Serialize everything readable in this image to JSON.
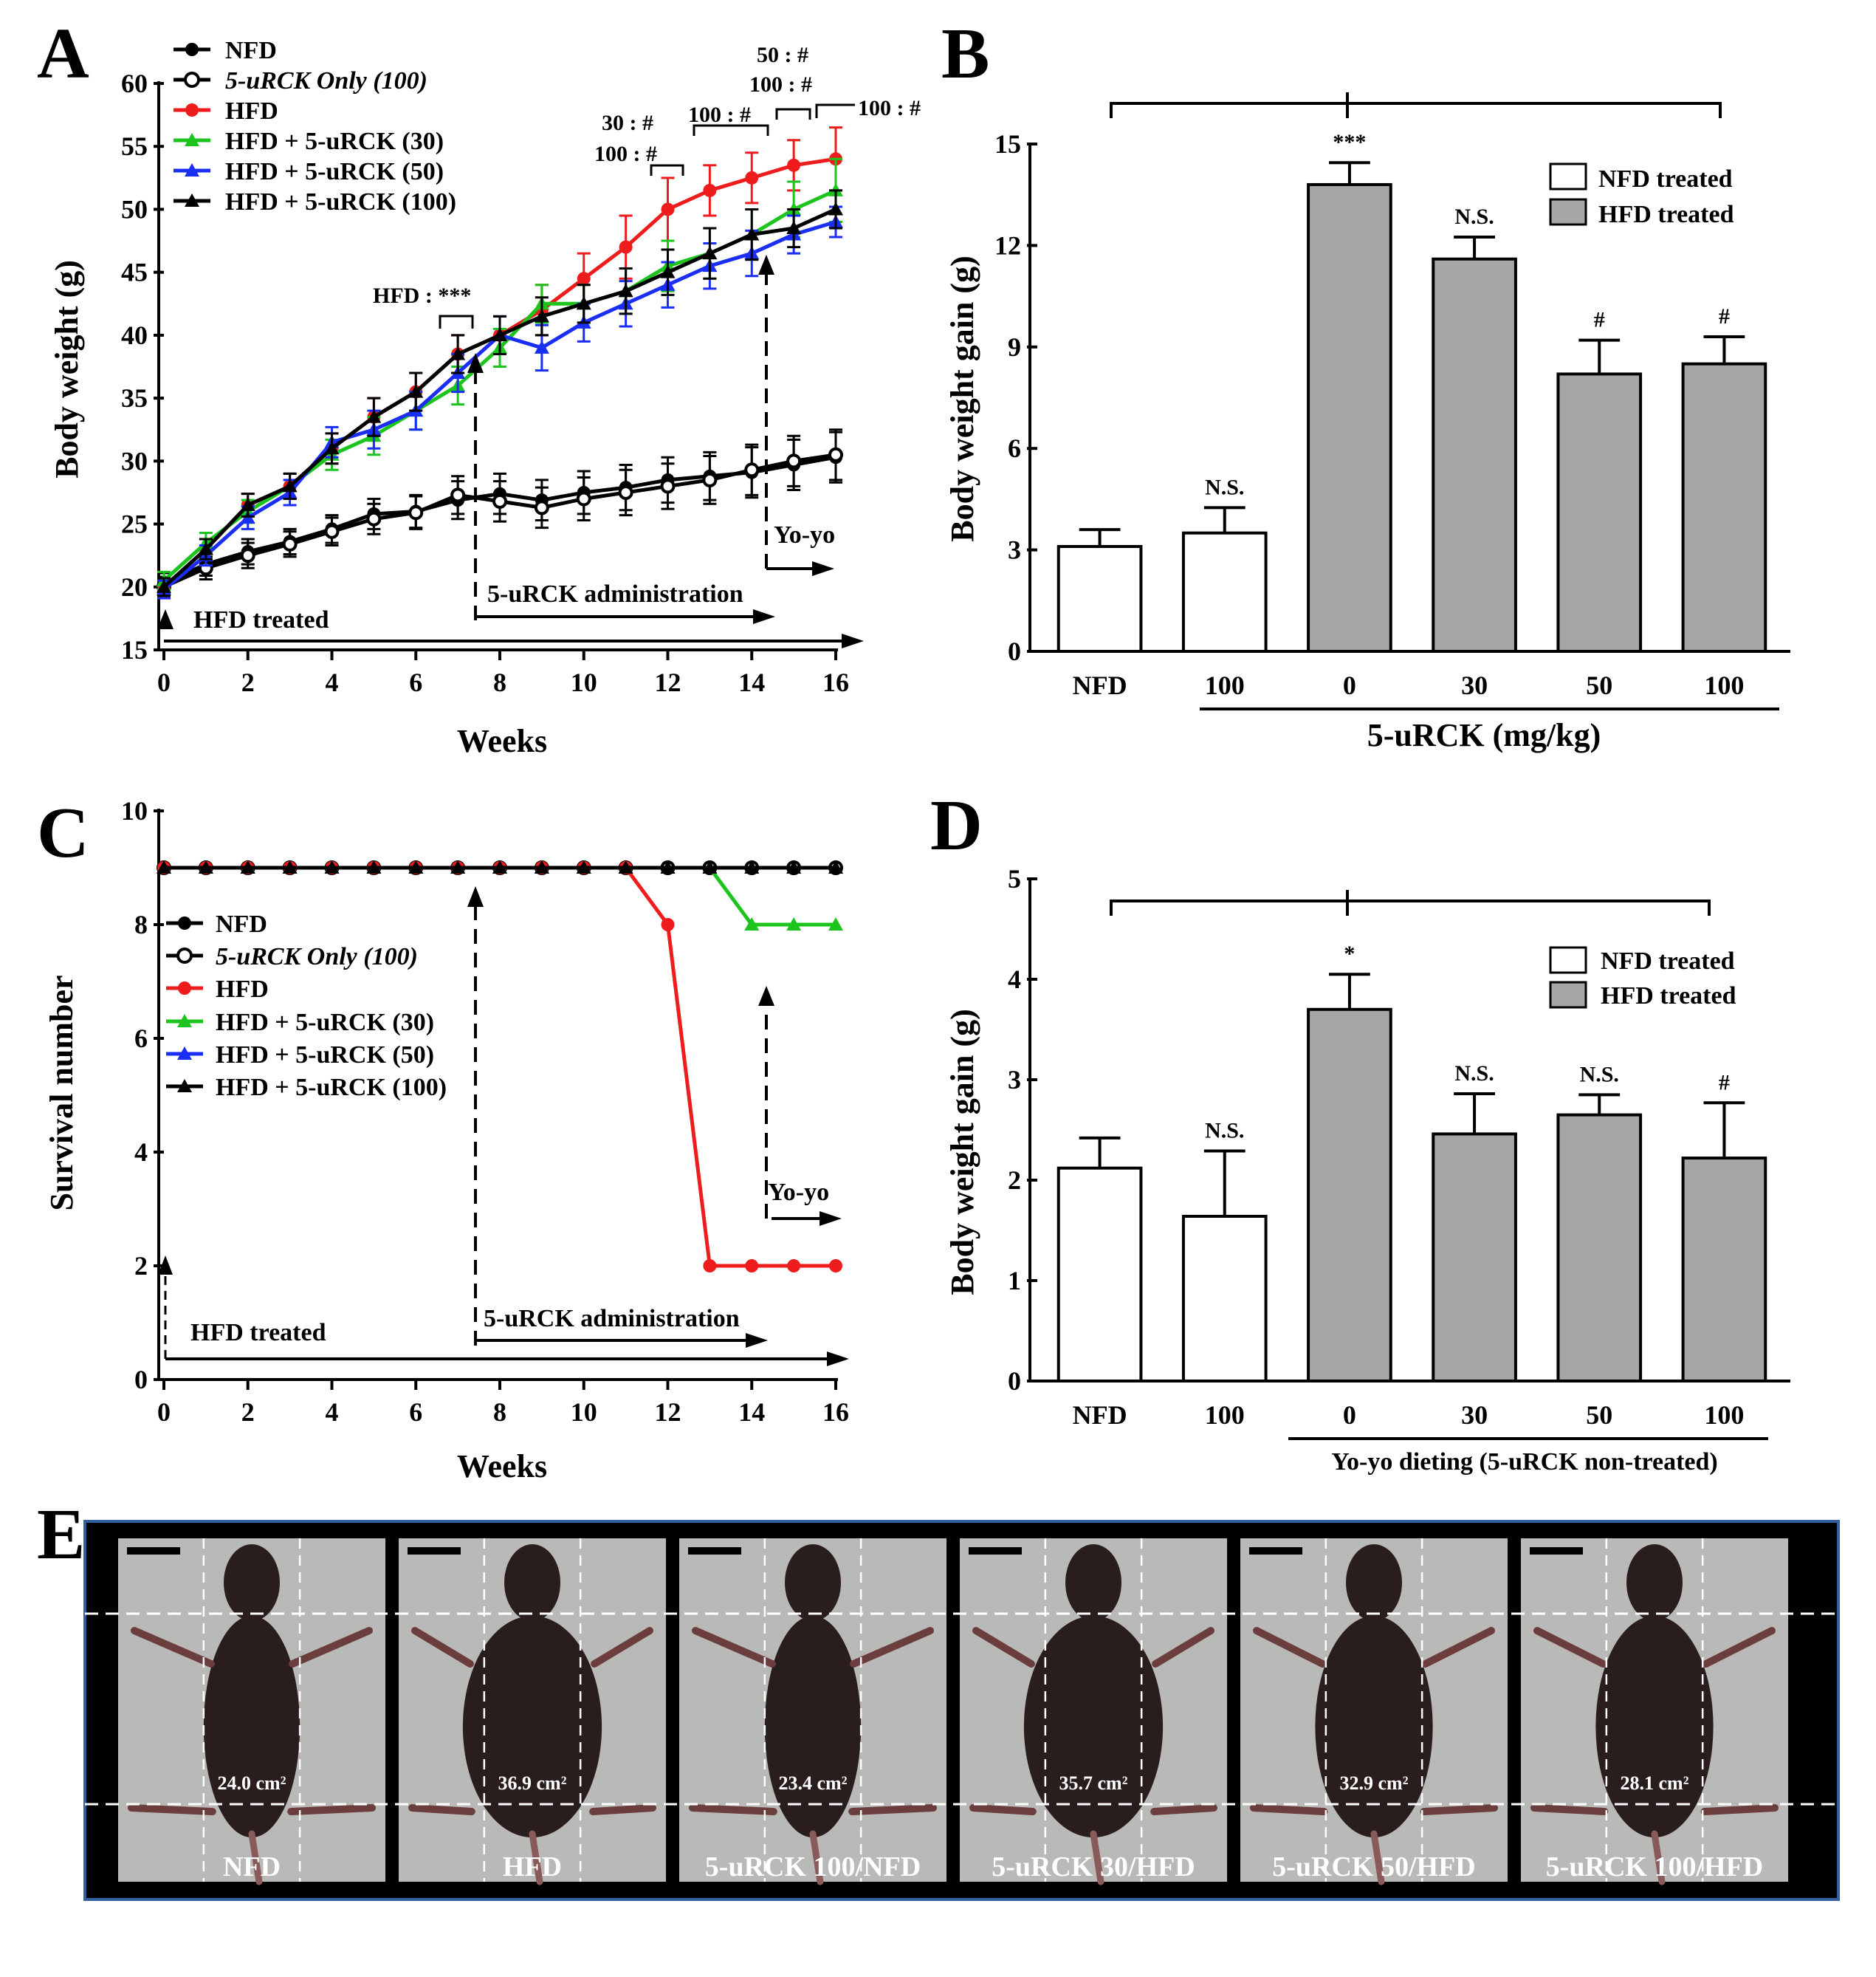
{
  "panels": {
    "A": {
      "letter": "A"
    },
    "B": {
      "letter": "B"
    },
    "C": {
      "letter": "C"
    },
    "D": {
      "letter": "D"
    },
    "E": {
      "letter": "E"
    }
  },
  "colors": {
    "NFD": "#000000",
    "uRCK_only": "#000000",
    "HFD": "#ee1c1c",
    "HFD30": "#1ec41e",
    "HFD50": "#1a2ef5",
    "HFD100": "#000000",
    "bar_gray": "#a6a6a6",
    "photo_frame": "#2f5f9e"
  },
  "legend_A": [
    {
      "label": "NFD",
      "key": "NFD",
      "marker": "circle-filled"
    },
    {
      "label": "5-uRCK Only (100)",
      "key": "uRCK_only",
      "marker": "circle-open"
    },
    {
      "label": "HFD",
      "key": "HFD",
      "marker": "circle-filled"
    },
    {
      "label": "HFD + 5-uRCK (30)",
      "key": "HFD30",
      "marker": "triangle"
    },
    {
      "label": "HFD + 5-uRCK (50)",
      "key": "HFD50",
      "marker": "triangle"
    },
    {
      "label": "HFD + 5-uRCK (100)",
      "key": "HFD100",
      "marker": "triangle"
    }
  ],
  "annotations_A": {
    "hfd_sig": "HFD : ***",
    "w12a": "30 : #",
    "w12b": "100 : #",
    "w13": "100 : #",
    "w15a": "50 : #",
    "w15b": "100 : #",
    "w16": "100 : #",
    "yoyo": "Yo-yo",
    "admin": "5-uRCK administration",
    "hfd_treated": "HFD treated"
  },
  "annotations_C": {
    "yoyo": "Yo-yo",
    "admin": "5-uRCK administration",
    "hfd_treated": "HFD treated"
  },
  "legend_bar": {
    "nfd": "NFD treated",
    "hfd": "HFD treated"
  },
  "group_label_B": "5-uRCK (mg/kg)",
  "group_label_D": "Yo-yo dieting (5-uRCK non-treated)",
  "chart_data": [
    {
      "panel": "A",
      "type": "line",
      "xlabel": "Weeks",
      "ylabel": "Body weight (g)",
      "xlim": [
        0,
        16
      ],
      "ylim": [
        15,
        60
      ],
      "xticks": [
        0,
        2,
        4,
        6,
        8,
        10,
        12,
        14,
        16
      ],
      "yticks": [
        15,
        20,
        25,
        30,
        35,
        40,
        45,
        50,
        55,
        60
      ],
      "x": [
        0,
        1,
        2,
        3,
        4,
        5,
        6,
        7,
        8,
        9,
        10,
        11,
        12,
        13,
        14,
        15,
        16
      ],
      "series": [
        {
          "name": "NFD",
          "key": "NFD",
          "marker": "circle-filled",
          "values": [
            20.3,
            21.8,
            22.8,
            23.6,
            24.6,
            25.8,
            26.0,
            26.9,
            27.4,
            26.9,
            27.5,
            27.9,
            28.5,
            28.8,
            29.1,
            29.7,
            30.3
          ],
          "err": [
            0.8,
            0.9,
            1.0,
            1.0,
            1.1,
            1.2,
            1.3,
            1.5,
            1.6,
            1.6,
            1.7,
            1.8,
            1.8,
            1.9,
            2.0,
            2.0,
            2.0
          ]
        },
        {
          "name": "5-uRCK Only (100)",
          "key": "uRCK_only",
          "marker": "circle-open",
          "values": [
            20.0,
            21.5,
            22.5,
            23.4,
            24.4,
            25.4,
            25.9,
            27.3,
            26.8,
            26.3,
            27.0,
            27.5,
            28.0,
            28.5,
            29.3,
            30.0,
            30.5
          ],
          "err": [
            0.8,
            0.9,
            1.0,
            1.0,
            1.1,
            1.2,
            1.3,
            1.5,
            1.6,
            1.6,
            1.7,
            1.8,
            1.8,
            1.9,
            2.0,
            2.0,
            2.0
          ]
        },
        {
          "name": "HFD",
          "key": "HFD",
          "marker": "circle-filled",
          "values": [
            20.0,
            23.0,
            26.5,
            28.0,
            31.0,
            33.5,
            35.5,
            38.5,
            40.0,
            42.0,
            44.5,
            47.0,
            50.0,
            51.5,
            52.5,
            53.5,
            54.0
          ],
          "err": [
            0.7,
            0.8,
            0.9,
            1.0,
            1.2,
            1.5,
            1.5,
            1.5,
            1.5,
            2.0,
            2.0,
            2.5,
            2.5,
            2.0,
            2.0,
            2.0,
            2.5
          ]
        },
        {
          "name": "HFD + 5-uRCK (30)",
          "key": "HFD30",
          "marker": "triangle",
          "values": [
            20.5,
            23.5,
            26.0,
            28.0,
            30.5,
            32.0,
            34.0,
            36.0,
            39.0,
            42.5,
            42.5,
            43.5,
            45.5,
            46.5,
            48.0,
            50.0,
            51.5
          ],
          "err": [
            0.7,
            0.8,
            0.9,
            1.0,
            1.2,
            1.5,
            1.5,
            1.5,
            1.5,
            1.5,
            1.5,
            1.8,
            2.0,
            2.0,
            2.0,
            2.2,
            2.5
          ]
        },
        {
          "name": "HFD + 5-uRCK (50)",
          "key": "HFD50",
          "marker": "triangle",
          "values": [
            19.8,
            22.5,
            25.5,
            27.5,
            31.5,
            32.5,
            34.0,
            37.0,
            40.0,
            39.0,
            41.0,
            42.5,
            44.0,
            45.5,
            46.5,
            48.0,
            49.0
          ],
          "err": [
            0.7,
            0.8,
            0.9,
            1.0,
            1.2,
            1.5,
            1.5,
            1.5,
            1.5,
            1.8,
            1.5,
            1.8,
            1.8,
            1.8,
            1.8,
            1.5,
            1.2
          ]
        },
        {
          "name": "HFD + 5-uRCK (100)",
          "key": "HFD100",
          "marker": "triangle",
          "values": [
            20.0,
            23.0,
            26.5,
            28.0,
            31.0,
            33.5,
            35.5,
            38.5,
            40.0,
            41.5,
            42.5,
            43.5,
            45.0,
            46.5,
            48.0,
            48.5,
            50.0
          ],
          "err": [
            0.7,
            0.8,
            0.9,
            1.0,
            1.2,
            1.5,
            1.5,
            1.5,
            1.5,
            1.5,
            1.5,
            1.8,
            1.8,
            2.0,
            2.0,
            1.5,
            1.5
          ]
        }
      ]
    },
    {
      "panel": "B",
      "type": "bar",
      "ylabel": "Body weight gain (g)",
      "ylim": [
        0,
        15
      ],
      "yticks": [
        0,
        3,
        6,
        9,
        12,
        15
      ],
      "categories": [
        "NFD",
        "100",
        "0",
        "30",
        "50",
        "100"
      ],
      "values": [
        3.1,
        3.5,
        13.8,
        11.6,
        8.2,
        8.5
      ],
      "err": [
        0.5,
        0.75,
        0.65,
        0.65,
        1.0,
        0.8
      ],
      "fill": [
        "white",
        "white",
        "gray",
        "gray",
        "gray",
        "gray"
      ],
      "labels": [
        "",
        "N.S.",
        "***",
        "N.S.",
        "#",
        "#"
      ]
    },
    {
      "panel": "C",
      "type": "line",
      "xlabel": "Weeks",
      "ylabel": "Survival number",
      "xlim": [
        0,
        16
      ],
      "ylim": [
        0,
        10
      ],
      "xticks": [
        0,
        2,
        4,
        6,
        8,
        10,
        12,
        14,
        16
      ],
      "yticks": [
        0,
        2,
        4,
        6,
        8,
        10
      ],
      "x": [
        0,
        1,
        2,
        3,
        4,
        5,
        6,
        7,
        8,
        9,
        10,
        11,
        12,
        13,
        14,
        15,
        16
      ],
      "series": [
        {
          "name": "NFD",
          "key": "NFD",
          "marker": "circle-filled",
          "values": [
            9,
            9,
            9,
            9,
            9,
            9,
            9,
            9,
            9,
            9,
            9,
            9,
            9,
            9,
            9,
            9,
            9
          ]
        },
        {
          "name": "5-uRCK Only (100)",
          "key": "uRCK_only",
          "marker": "circle-open",
          "values": [
            9,
            9,
            9,
            9,
            9,
            9,
            9,
            9,
            9,
            9,
            9,
            9,
            9,
            9,
            9,
            9,
            9
          ]
        },
        {
          "name": "HFD",
          "key": "HFD",
          "marker": "circle-filled",
          "values": [
            9,
            9,
            9,
            9,
            9,
            9,
            9,
            9,
            9,
            9,
            9,
            9,
            8,
            2,
            2,
            2,
            2
          ]
        },
        {
          "name": "HFD + 5-uRCK (30)",
          "key": "HFD30",
          "marker": "triangle",
          "values": [
            9,
            9,
            9,
            9,
            9,
            9,
            9,
            9,
            9,
            9,
            9,
            9,
            9,
            9,
            8,
            8,
            8
          ]
        },
        {
          "name": "HFD + 5-uRCK (50)",
          "key": "HFD50",
          "marker": "triangle",
          "values": [
            9,
            9,
            9,
            9,
            9,
            9,
            9,
            9,
            9,
            9,
            9,
            9,
            9,
            9,
            9,
            9,
            9
          ]
        },
        {
          "name": "HFD + 5-uRCK (100)",
          "key": "HFD100",
          "marker": "triangle",
          "values": [
            9,
            9,
            9,
            9,
            9,
            9,
            9,
            9,
            9,
            9,
            9,
            9,
            9,
            9,
            9,
            9,
            9
          ]
        }
      ]
    },
    {
      "panel": "D",
      "type": "bar",
      "ylabel": "Body weight gain (g)",
      "ylim": [
        0,
        5
      ],
      "yticks": [
        0,
        1,
        2,
        3,
        4,
        5
      ],
      "categories": [
        "NFD",
        "100",
        "0",
        "30",
        "50",
        "100"
      ],
      "values": [
        2.12,
        1.64,
        3.7,
        2.46,
        2.65,
        2.22
      ],
      "err": [
        0.3,
        0.65,
        0.35,
        0.4,
        0.2,
        0.55
      ],
      "fill": [
        "white",
        "white",
        "gray",
        "gray",
        "gray",
        "gray"
      ],
      "labels": [
        "",
        "N.S.",
        "*",
        "N.S.",
        "N.S.",
        "#"
      ]
    }
  ],
  "photos": [
    {
      "area": "24.0 cm²",
      "label": "NFD",
      "size": "slim"
    },
    {
      "area": "36.9 cm²",
      "label": "HFD",
      "size": "fat"
    },
    {
      "area": "23.4 cm²",
      "label": "5-uRCK 100/NFD",
      "size": "slim"
    },
    {
      "area": "35.7 cm²",
      "label": "5-uRCK 30/HFD",
      "size": "fat"
    },
    {
      "area": "32.9 cm²",
      "label": "5-uRCK 50/HFD",
      "size": "medium"
    },
    {
      "area": "28.1 cm²",
      "label": "5-uRCK 100/HFD",
      "size": "medium"
    }
  ]
}
